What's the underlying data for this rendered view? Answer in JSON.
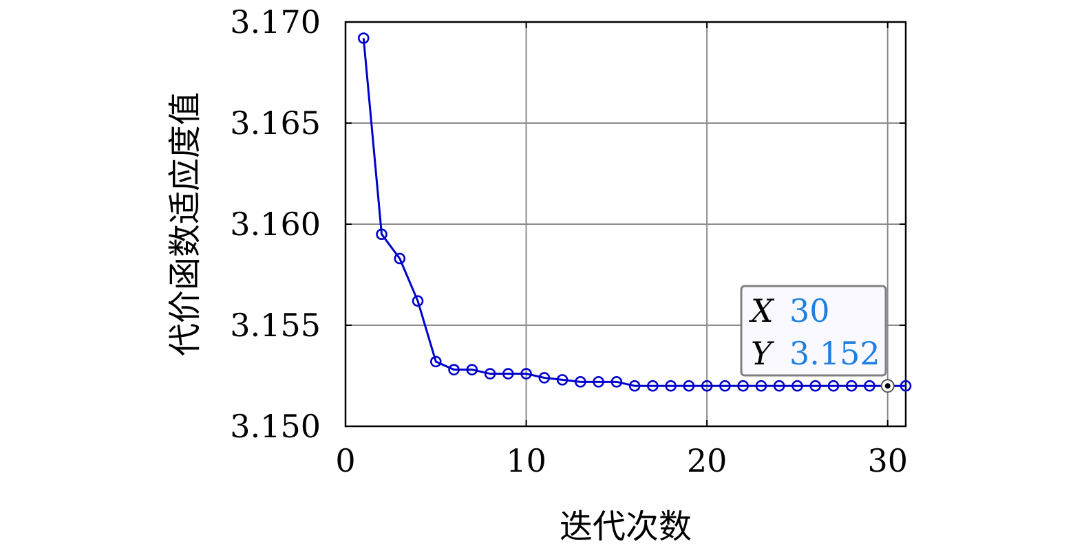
{
  "chart_data": {
    "type": "line",
    "xlabel": "迭代次数",
    "ylabel": "代价函数适应度值",
    "xlim": [
      0,
      31
    ],
    "ylim": [
      3.15,
      3.17
    ],
    "x_ticks": [
      0,
      10,
      20,
      30
    ],
    "x_tick_labels": [
      "0",
      "10",
      "20",
      "30"
    ],
    "y_ticks": [
      3.15,
      3.155,
      3.16,
      3.165,
      3.17
    ],
    "y_tick_labels": [
      "3.150",
      "3.155",
      "3.160",
      "3.165",
      "3.170"
    ],
    "grid": true,
    "series": [
      {
        "marker": "circle",
        "color": "#0000cc",
        "x": [
          1,
          2,
          3,
          4,
          5,
          6,
          7,
          8,
          9,
          10,
          11,
          12,
          13,
          14,
          15,
          16,
          17,
          18,
          19,
          20,
          21,
          22,
          23,
          24,
          25,
          26,
          27,
          28,
          29,
          30,
          31
        ],
        "y": [
          3.1692,
          3.1595,
          3.1583,
          3.1562,
          3.1532,
          3.1528,
          3.1528,
          3.1526,
          3.1526,
          3.1526,
          3.1524,
          3.1523,
          3.1522,
          3.1522,
          3.1522,
          3.152,
          3.152,
          3.152,
          3.152,
          3.152,
          3.152,
          3.152,
          3.152,
          3.152,
          3.152,
          3.152,
          3.152,
          3.152,
          3.152,
          3.152,
          3.152
        ]
      }
    ],
    "datatip": {
      "x": 30,
      "y": 3.152,
      "x_key": "X",
      "y_key": "Y",
      "x_text": "30",
      "y_text": "3.152",
      "value_color": "#1f7fe0"
    }
  }
}
